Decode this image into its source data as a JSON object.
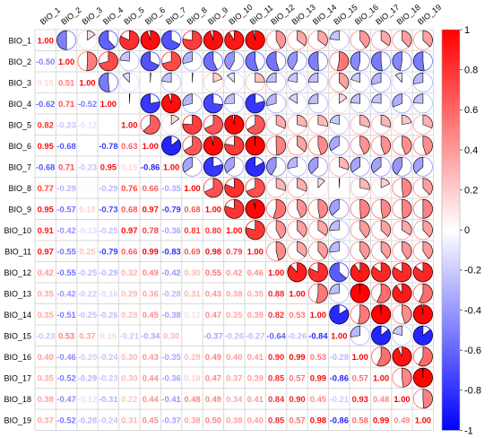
{
  "chart_data": {
    "type": "heatmap",
    "title": "",
    "variables": [
      "BIO_1",
      "BIO_2",
      "BIO_3",
      "BIO_4",
      "BIO_5",
      "BIO_6",
      "BIO_7",
      "BIO_8",
      "BIO_9",
      "BIO_10",
      "BIO_11",
      "BIO_12",
      "BIO_13",
      "BIO_14",
      "BIO_15",
      "BIO_16",
      "BIO_17",
      "BIO_18",
      "BIO_19"
    ],
    "lower_triangle": "numbers",
    "upper_triangle": "pie",
    "diagonal": "numbers",
    "colorbar": {
      "range": [
        -1,
        1
      ],
      "ticks": [
        1,
        0.8,
        0.6,
        0.4,
        0.2,
        0,
        -0.2,
        -0.4,
        -0.6,
        -0.8,
        -1
      ],
      "tick_labels": [
        "1",
        "0.8",
        "0.6",
        "0.4",
        "0.2",
        "0",
        "-0.2",
        "-0.4",
        "-0.6",
        "-0.8",
        "-1"
      ],
      "colors": {
        "negative": "#0000ff",
        "zero": "#ffffff",
        "positive": "#ff0000"
      },
      "placement": "right"
    },
    "matrix": [
      [
        1.0,
        -0.5,
        0.15,
        -0.62,
        0.82,
        0.95,
        -0.68,
        0.77,
        0.95,
        0.91,
        0.97,
        0.42,
        0.35,
        0.35,
        -0.23,
        0.4,
        0.35,
        0.38,
        0.37
      ],
      [
        -0.5,
        1.0,
        0.51,
        0.71,
        -0.23,
        -0.68,
        0.71,
        -0.29,
        -0.57,
        -0.42,
        -0.55,
        -0.55,
        -0.42,
        -0.51,
        0.53,
        -0.46,
        -0.52,
        -0.47,
        -0.52
      ],
      [
        0.15,
        0.51,
        1.0,
        -0.52,
        -0.12,
        0.01,
        -0.23,
        0.01,
        0.19,
        -0.13,
        0.25,
        -0.25,
        -0.22,
        -0.25,
        0.37,
        -0.2,
        -0.29,
        -0.12,
        -0.28
      ],
      [
        -0.62,
        0.71,
        -0.52,
        1.0,
        0.01,
        -0.78,
        0.95,
        -0.29,
        -0.73,
        -0.25,
        -0.79,
        -0.29,
        -0.16,
        -0.26,
        0.15,
        -0.24,
        -0.23,
        -0.31,
        -0.24
      ],
      [
        0.82,
        -0.23,
        -0.12,
        0.01,
        1.0,
        0.63,
        0.15,
        0.76,
        0.68,
        0.97,
        0.66,
        0.32,
        0.29,
        0.28,
        -0.21,
        0.3,
        0.3,
        0.22,
        0.31
      ],
      [
        0.95,
        -0.68,
        0.01,
        -0.78,
        0.63,
        1.0,
        -0.86,
        0.66,
        0.97,
        0.78,
        0.99,
        0.49,
        0.36,
        0.45,
        -0.34,
        0.43,
        0.44,
        0.44,
        0.45
      ],
      [
        -0.68,
        0.71,
        -0.23,
        0.95,
        0.15,
        -0.86,
        1.0,
        -0.35,
        -0.79,
        -0.36,
        -0.83,
        -0.42,
        -0.28,
        -0.38,
        0.3,
        -0.35,
        -0.36,
        -0.41,
        -0.37
      ],
      [
        0.77,
        -0.29,
        0.01,
        -0.29,
        0.76,
        0.66,
        -0.35,
        1.0,
        0.68,
        0.81,
        0.69,
        0.3,
        0.31,
        0.12,
        0.01,
        0.28,
        0.18,
        0.48,
        0.38
      ],
      [
        0.95,
        -0.57,
        0.19,
        -0.73,
        0.68,
        0.97,
        -0.79,
        0.68,
        1.0,
        0.8,
        0.98,
        0.55,
        0.43,
        0.47,
        -0.37,
        0.49,
        0.47,
        0.49,
        0.5
      ],
      [
        0.91,
        -0.42,
        -0.13,
        -0.25,
        0.97,
        0.78,
        -0.36,
        0.81,
        0.8,
        1.0,
        0.79,
        0.42,
        0.38,
        0.35,
        -0.26,
        0.4,
        0.37,
        0.34,
        0.38
      ],
      [
        0.97,
        -0.55,
        0.25,
        -0.79,
        0.66,
        0.99,
        -0.83,
        0.69,
        0.98,
        0.79,
        1.0,
        0.46,
        0.35,
        0.39,
        -0.27,
        0.41,
        0.39,
        0.41,
        0.4
      ],
      [
        0.42,
        -0.55,
        -0.25,
        -0.29,
        0.32,
        0.49,
        -0.42,
        0.3,
        0.55,
        0.42,
        0.46,
        1.0,
        0.88,
        0.82,
        -0.64,
        0.9,
        0.85,
        0.84,
        0.85
      ],
      [
        0.35,
        -0.42,
        -0.22,
        -0.16,
        0.29,
        0.36,
        -0.28,
        0.31,
        0.43,
        0.38,
        0.35,
        0.88,
        1.0,
        0.53,
        -0.26,
        0.99,
        0.57,
        0.9,
        0.57
      ],
      [
        0.35,
        -0.51,
        -0.25,
        -0.26,
        0.28,
        0.45,
        -0.38,
        0.12,
        0.47,
        0.35,
        0.39,
        0.82,
        0.53,
        1.0,
        -0.84,
        0.53,
        0.99,
        0.45,
        0.98
      ],
      [
        -0.23,
        0.53,
        0.37,
        0.15,
        -0.21,
        -0.34,
        0.3,
        0.01,
        -0.37,
        -0.26,
        -0.27,
        -0.64,
        -0.26,
        -0.84,
        1.0,
        -0.28,
        -0.86,
        -0.21,
        -0.86
      ],
      [
        0.4,
        -0.46,
        -0.2,
        -0.24,
        0.3,
        0.43,
        -0.35,
        0.28,
        0.49,
        0.4,
        0.41,
        0.9,
        0.99,
        0.53,
        -0.28,
        1.0,
        0.57,
        0.93,
        0.58
      ],
      [
        0.35,
        -0.52,
        -0.29,
        -0.23,
        0.3,
        0.44,
        -0.36,
        0.18,
        0.47,
        0.37,
        0.39,
        0.85,
        0.57,
        0.99,
        -0.86,
        0.57,
        1.0,
        0.48,
        0.99
      ],
      [
        0.38,
        -0.47,
        -0.12,
        -0.31,
        0.22,
        0.44,
        -0.41,
        0.48,
        0.49,
        0.34,
        0.41,
        0.84,
        0.9,
        0.45,
        -0.21,
        0.93,
        0.48,
        1.0,
        0.49
      ],
      [
        0.37,
        -0.52,
        -0.28,
        -0.24,
        0.31,
        0.45,
        -0.37,
        0.38,
        0.5,
        0.38,
        0.4,
        0.85,
        0.57,
        0.98,
        -0.86,
        0.58,
        0.99,
        0.49,
        1.0
      ]
    ]
  }
}
